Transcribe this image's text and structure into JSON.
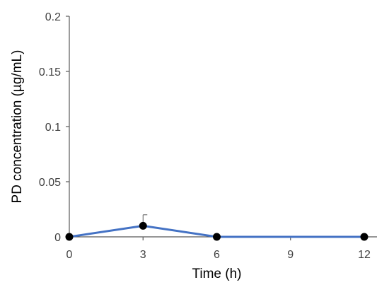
{
  "chart_data": {
    "type": "line",
    "xlabel": "Time (h)",
    "ylabel": "PD concentration (µg/mL)",
    "xlim": [
      0,
      12
    ],
    "ylim": [
      0,
      0.2
    ],
    "x_ticks": [
      0,
      3,
      6,
      9,
      12
    ],
    "x_tick_labels": [
      "0",
      "3",
      "6",
      "9",
      "12"
    ],
    "y_ticks": [
      0,
      0.05,
      0.1,
      0.15,
      0.2
    ],
    "y_tick_labels": [
      "0",
      "0.05",
      "0.1",
      "0.15",
      "0.2"
    ],
    "grid": false,
    "legend": "none",
    "series": [
      {
        "x": [
          0,
          3,
          6,
          12
        ],
        "y": [
          0,
          0.01,
          0,
          0
        ],
        "error_upper": [
          0,
          0.01,
          0,
          0
        ],
        "line_color": "#4472C4",
        "marker_color": "#000000"
      }
    ]
  }
}
